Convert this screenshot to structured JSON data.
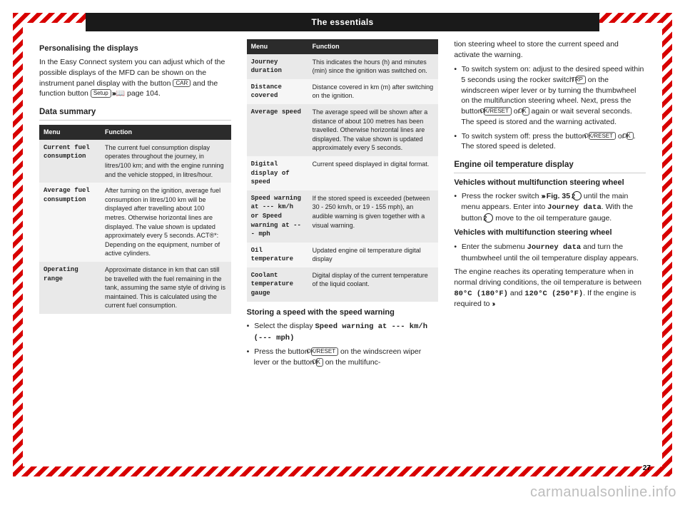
{
  "header": {
    "title": "The essentials"
  },
  "col1": {
    "h1": "Personalising the displays",
    "p1a": "In the Easy Connect system you can adjust which of the possible displays of the MFD can be shown on the instrument panel display with the button ",
    "btn_car": "CAR",
    "p1b": " and the function button ",
    "btn_setup": "Setup",
    "arrows": " ››› ",
    "bookicon": "📖",
    "pageref": " page 104.",
    "h2": "Data summary",
    "table": {
      "head_menu": "Menu",
      "head_func": "Function",
      "rows": [
        {
          "m": "Current fuel consumption",
          "f": "The current fuel consumption display operates throughout the journey, in litres/100 km; and with the engine running and the vehicle stopped, in litres/hour."
        },
        {
          "m": "Average fuel consumption",
          "f": "After turning on the ignition, average fuel consumption in litres/100 km will be displayed after travelling about 100 metres. Otherwise horizontal lines are displayed. The value shown is updated approximately every 5 seconds.\nACT®*: Depending on the equipment, number of active cylinders."
        },
        {
          "m": "Operating range",
          "f": "Approximate distance in km that can still be travelled with the fuel remaining in the tank, assuming the same style of driving is maintained. This is calculated using the current fuel consumption."
        }
      ]
    }
  },
  "col2": {
    "table": {
      "head_menu": "Menu",
      "head_func": "Function",
      "rows": [
        {
          "m": "Journey duration",
          "f": "This indicates the hours (h) and minutes (min) since the ignition was switched on."
        },
        {
          "m": "Distance covered",
          "f": "Distance covered in km (m) after switching on the ignition."
        },
        {
          "m": "Average speed",
          "f": "The average speed will be shown after a distance of about 100 metres has been travelled. Otherwise horizontal lines are displayed. The value shown is updated approximately every 5 seconds."
        },
        {
          "m": "Digital display of speed",
          "f": "Current speed displayed in digital format."
        },
        {
          "m": "Speed warning at --- km/h or Speed warning at --- mph",
          "f": "If the stored speed is exceeded (between 30 - 250 km/h, or 19 - 155 mph), an audible warning is given together with a visual warning."
        },
        {
          "m": "Oil temperature",
          "f": "Updated engine oil temperature digital display"
        },
        {
          "m": "Coolant temperature gauge",
          "f": "Digital display of the current temperature of the liquid coolant."
        }
      ]
    },
    "h3": "Storing a speed with the speed warning",
    "b1a": "Select the display ",
    "b1b": "Speed warning at --- km/h (--- mph)",
    "b2a": "Press the button ",
    "btn_okreset": "OK/RESET",
    "b2b": " on the windscreen wiper lever or the button ",
    "btn_ok": "OK",
    "b2c": " on the multifunc-"
  },
  "col3": {
    "p1": "tion steering wheel to store the current speed and activate the warning.",
    "b1a": "To switch system on: adjust to the desired speed within 5 seconds using the rocker switch ",
    "btn_trp": "TRP",
    "b1b": " on the windscreen wiper lever or by turning the thumbwheel on the multifunction steering wheel. Next, press the button ",
    "btn_okreset": "OK/RESET",
    "b1c": " or ",
    "btn_ok": "OK",
    "b1d": " again or wait several seconds. The speed is stored and the warning activated.",
    "b2a": "To switch system off: press the button ",
    "b2b": " or ",
    "b2c": ". The stored speed is deleted.",
    "h4": "Engine oil temperature display",
    "h5": "Vehicles without multifunction steering wheel",
    "b3a": "Press the rocker switch ",
    "arrows": "›››",
    "figref": " Fig. 35 ",
    "b3b": " until the main menu appears. Enter into ",
    "mono_journey": "Journey data",
    "b3c": ". With the button ",
    "b3d": " move to the oil temperature gauge.",
    "h6": "Vehicles with multifunction steering wheel",
    "b4a": "Enter the submenu ",
    "b4b": " and turn the thumbwheel until the oil temperature display appears.",
    "p2a": "The engine reaches its operating temperature when in normal driving conditions, the oil temperature is between ",
    "mono_80": "80°C (180°F)",
    "p2b": " and ",
    "mono_120": "120°C (250°F)",
    "p2c": ". If the engine is required to ",
    "endarrows": "››"
  },
  "pagenum": "27",
  "watermark": "carmanualsonline.info",
  "colors": {
    "accent": "#d80000",
    "header_bg": "#1a1a1a",
    "tbl_header_bg": "#2b2b2b",
    "row_odd": "#e9e9e9",
    "row_even": "#f6f6f6"
  }
}
